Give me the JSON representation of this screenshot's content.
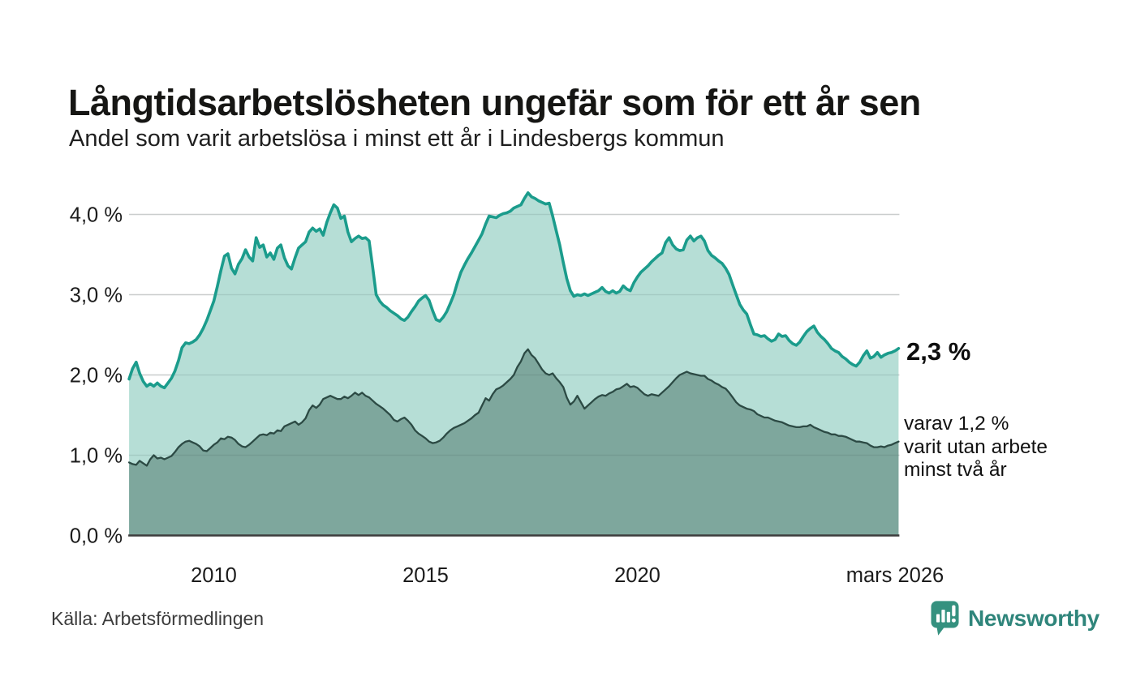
{
  "header": {
    "title": "Långtidsarbetslösheten ungefär som för ett år sen",
    "subtitle": "Andel som varit arbetslösa i minst ett år i Lindesbergs kommun"
  },
  "chart_data": {
    "type": "area",
    "x_start": "2008-01",
    "x_end": "2026-03",
    "frequency": "monthly",
    "ylim": [
      0,
      4.4
    ],
    "grid": "on",
    "y_ticks": [
      {
        "value": 0,
        "label": "0,0 %"
      },
      {
        "value": 1,
        "label": "1,0 %"
      },
      {
        "value": 2,
        "label": "2,0 %"
      },
      {
        "value": 3,
        "label": "3,0 %"
      },
      {
        "value": 4,
        "label": "4,0 %"
      }
    ],
    "x_ticks": [
      {
        "year": 2010.0,
        "label": "2010"
      },
      {
        "year": 2015.0,
        "label": "2015"
      },
      {
        "year": 2020.0,
        "label": "2020"
      },
      {
        "year": 2025.92,
        "label": "mars 2026"
      }
    ],
    "series": [
      {
        "name": "Andel som varit arbetslösa i minst ett år",
        "values": [
          1.95,
          2.08,
          2.16,
          2.02,
          1.92,
          1.86,
          1.89,
          1.86,
          1.9,
          1.86,
          1.84,
          1.9,
          1.96,
          2.05,
          2.18,
          2.34,
          2.4,
          2.39,
          2.41,
          2.44,
          2.5,
          2.58,
          2.68,
          2.8,
          2.92,
          3.1,
          3.3,
          3.48,
          3.51,
          3.33,
          3.26,
          3.38,
          3.45,
          3.56,
          3.47,
          3.42,
          3.71,
          3.59,
          3.62,
          3.47,
          3.52,
          3.44,
          3.58,
          3.62,
          3.46,
          3.36,
          3.32,
          3.46,
          3.58,
          3.62,
          3.66,
          3.78,
          3.83,
          3.79,
          3.82,
          3.74,
          3.9,
          4.02,
          4.12,
          4.08,
          3.95,
          3.98,
          3.78,
          3.66,
          3.7,
          3.73,
          3.7,
          3.71,
          3.67,
          3.34,
          3.0,
          2.92,
          2.87,
          2.84,
          2.8,
          2.77,
          2.74,
          2.7,
          2.68,
          2.72,
          2.79,
          2.85,
          2.92,
          2.96,
          2.99,
          2.93,
          2.8,
          2.69,
          2.67,
          2.72,
          2.79,
          2.89,
          3.0,
          3.15,
          3.28,
          3.37,
          3.45,
          3.52,
          3.6,
          3.68,
          3.76,
          3.88,
          3.98,
          3.97,
          3.96,
          3.99,
          4.01,
          4.02,
          4.04,
          4.08,
          4.1,
          4.12,
          4.2,
          4.27,
          4.22,
          4.2,
          4.17,
          4.15,
          4.13,
          4.14,
          3.98,
          3.8,
          3.62,
          3.4,
          3.2,
          3.05,
          2.98,
          3.0,
          2.99,
          3.01,
          2.99,
          3.01,
          3.03,
          3.05,
          3.09,
          3.04,
          3.02,
          3.05,
          3.02,
          3.04,
          3.11,
          3.07,
          3.05,
          3.15,
          3.22,
          3.28,
          3.32,
          3.36,
          3.41,
          3.45,
          3.49,
          3.52,
          3.65,
          3.71,
          3.62,
          3.57,
          3.55,
          3.56,
          3.68,
          3.73,
          3.67,
          3.71,
          3.73,
          3.67,
          3.55,
          3.49,
          3.46,
          3.42,
          3.39,
          3.33,
          3.25,
          3.12,
          3.0,
          2.88,
          2.81,
          2.76,
          2.63,
          2.51,
          2.5,
          2.48,
          2.49,
          2.45,
          2.42,
          2.44,
          2.51,
          2.48,
          2.49,
          2.43,
          2.39,
          2.37,
          2.41,
          2.48,
          2.54,
          2.58,
          2.61,
          2.53,
          2.48,
          2.44,
          2.39,
          2.33,
          2.3,
          2.28,
          2.23,
          2.2,
          2.16,
          2.13,
          2.11,
          2.16,
          2.24,
          2.3,
          2.21,
          2.23,
          2.28,
          2.22,
          2.25,
          2.27,
          2.28,
          2.3,
          2.33
        ]
      },
      {
        "name": "varav utan arbete minst två år",
        "values": [
          0.91,
          0.89,
          0.88,
          0.93,
          0.9,
          0.87,
          0.95,
          1.0,
          0.96,
          0.97,
          0.95,
          0.97,
          0.99,
          1.04,
          1.1,
          1.14,
          1.17,
          1.18,
          1.16,
          1.14,
          1.11,
          1.06,
          1.05,
          1.09,
          1.13,
          1.16,
          1.21,
          1.2,
          1.23,
          1.22,
          1.19,
          1.14,
          1.11,
          1.1,
          1.13,
          1.17,
          1.21,
          1.25,
          1.26,
          1.25,
          1.28,
          1.27,
          1.31,
          1.3,
          1.36,
          1.38,
          1.4,
          1.42,
          1.38,
          1.41,
          1.46,
          1.56,
          1.62,
          1.59,
          1.63,
          1.7,
          1.72,
          1.74,
          1.72,
          1.7,
          1.7,
          1.73,
          1.71,
          1.74,
          1.78,
          1.75,
          1.78,
          1.74,
          1.72,
          1.68,
          1.64,
          1.61,
          1.58,
          1.54,
          1.5,
          1.44,
          1.42,
          1.45,
          1.47,
          1.43,
          1.38,
          1.31,
          1.27,
          1.24,
          1.21,
          1.17,
          1.15,
          1.16,
          1.18,
          1.22,
          1.27,
          1.31,
          1.34,
          1.36,
          1.38,
          1.4,
          1.43,
          1.46,
          1.5,
          1.53,
          1.62,
          1.71,
          1.68,
          1.76,
          1.82,
          1.84,
          1.87,
          1.91,
          1.95,
          2.0,
          2.1,
          2.17,
          2.27,
          2.32,
          2.25,
          2.21,
          2.14,
          2.07,
          2.02,
          2.0,
          2.02,
          1.96,
          1.91,
          1.85,
          1.72,
          1.63,
          1.67,
          1.74,
          1.66,
          1.58,
          1.62,
          1.66,
          1.7,
          1.73,
          1.75,
          1.74,
          1.77,
          1.79,
          1.82,
          1.83,
          1.86,
          1.89,
          1.85,
          1.86,
          1.84,
          1.8,
          1.76,
          1.74,
          1.76,
          1.75,
          1.74,
          1.78,
          1.82,
          1.86,
          1.91,
          1.96,
          2.0,
          2.02,
          2.04,
          2.02,
          2.01,
          2.0,
          1.99,
          1.99,
          1.95,
          1.93,
          1.9,
          1.88,
          1.85,
          1.83,
          1.78,
          1.72,
          1.66,
          1.62,
          1.6,
          1.58,
          1.57,
          1.55,
          1.51,
          1.49,
          1.47,
          1.47,
          1.45,
          1.43,
          1.42,
          1.41,
          1.39,
          1.37,
          1.36,
          1.35,
          1.35,
          1.36,
          1.36,
          1.38,
          1.35,
          1.33,
          1.31,
          1.29,
          1.28,
          1.26,
          1.26,
          1.24,
          1.24,
          1.23,
          1.21,
          1.19,
          1.17,
          1.17,
          1.16,
          1.15,
          1.12,
          1.1,
          1.1,
          1.11,
          1.1,
          1.12,
          1.13,
          1.15,
          1.17
        ]
      }
    ],
    "annotations": {
      "latest_value": "2,3 %",
      "secondary_lines": [
        "varav 1,2 %",
        "varit utan arbete",
        "minst två år"
      ]
    },
    "colors": {
      "background": "#ffffff",
      "grid": "#e0e0e0",
      "axis_line": "#3d3d3d",
      "upper_line": "#1b9c8c",
      "upper_fill": "#b2dcd4",
      "lower_line": "#2c4a44",
      "lower_fill": "#7ea79d",
      "brand_teal": "#2f857b"
    }
  },
  "footer": {
    "source": "Källa: Arbetsförmedlingen",
    "brand": "Newsworthy"
  }
}
